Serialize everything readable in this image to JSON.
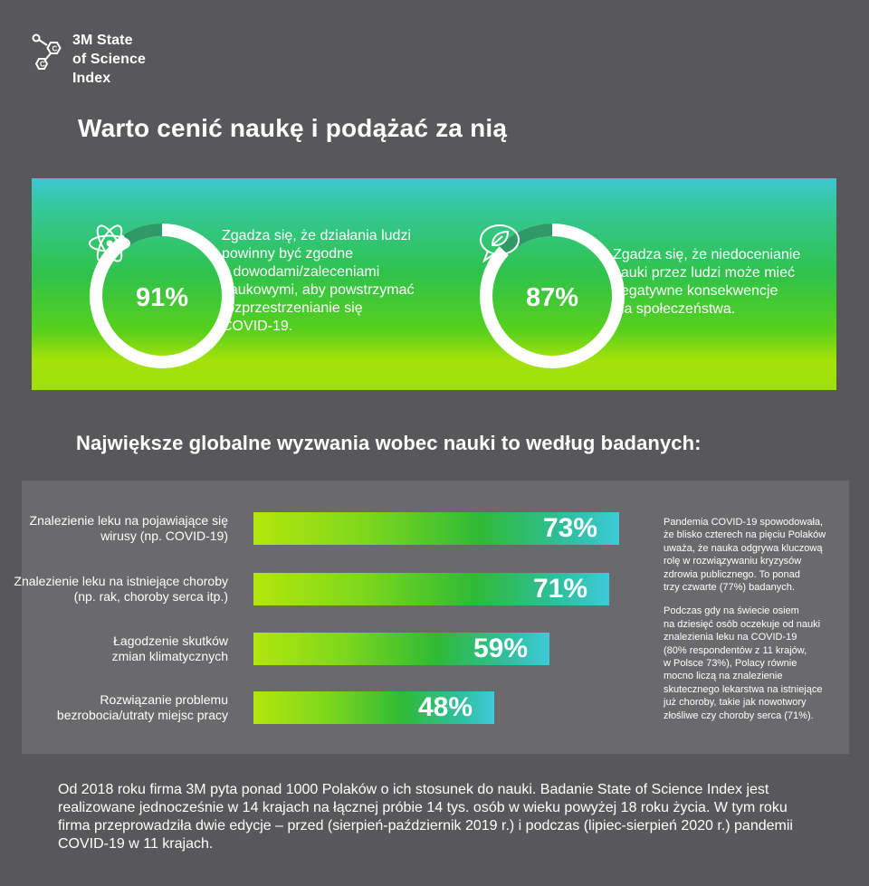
{
  "header": {
    "logo_lines": [
      "3M State",
      "of Science",
      "Index"
    ],
    "title": "Warto cenić naukę i podążać za nią"
  },
  "stats": [
    {
      "percent_label": "91%",
      "value": 91,
      "icon": "atom-icon",
      "text_lines": [
        "Zgadza się, że działania ludzi",
        "powinny być zgodne",
        "z dowodami/zaleceniami",
        "naukowymi, aby powstrzymać",
        "rozprzestrzenianie się",
        "COVID-19."
      ]
    },
    {
      "percent_label": "87%",
      "value": 87,
      "icon": "leaf-speech-bubble-icon",
      "text_lines": [
        "Zgadza się, że niedocenianie",
        "nauki przez ludzi może mieć",
        "negatywne konsekwencje",
        "dla społeczeństwa."
      ]
    }
  ],
  "section_title": "Największe globalne wyzwania wobec nauki to według badanych:",
  "chart_data": {
    "type": "bar",
    "orientation": "horizontal",
    "title": "Największe globalne wyzwania wobec nauki to według badanych:",
    "categories": [
      "Znalezienie leku na pojawiające się wirusy (np. COVID-19)",
      "Znalezienie leku na istniejące choroby (np. rak, choroby serca itp.)",
      "Łagodzenie skutków zmian klimatycznych",
      "Rozwiązanie problemu bezrobocia/utraty miejsc pracy"
    ],
    "category_lines": [
      [
        "Znalezienie leku na pojawiające się",
        "wirusy (np. COVID-19)"
      ],
      [
        "Znalezienie leku na istniejące choroby",
        "(np. rak, choroby serca itp.)"
      ],
      [
        "Łagodzenie skutków",
        "zmian klimatycznych"
      ],
      [
        "Rozwiązanie problemu",
        "bezrobocia/utraty miejsc pracy"
      ]
    ],
    "values": [
      73,
      71,
      59,
      48
    ],
    "value_labels": [
      "73%",
      "71%",
      "59%",
      "48%"
    ],
    "xlim": [
      0,
      100
    ],
    "xlabel": "",
    "ylabel": ""
  },
  "side_notes": [
    [
      "Pandemia COVID-19 spowodowała,",
      "że blisko czterech na pięciu Polaków",
      "uważa, że nauka odgrywa kluczową",
      "rolę w rozwiązywaniu kryzysów",
      "zdrowia publicznego. To ponad",
      "trzy czwarte (77%) badanych."
    ],
    [
      "Podczas gdy na świecie osiem",
      "na dziesięć osób oczekuje od nauki",
      "znalezienia leku na COVID-19",
      "(80% respondentów z 11 krajów,",
      "w Polsce 73%), Polacy równie",
      "mocno liczą na znalezienie",
      "skutecznego lekarstwa na istniejące",
      "już choroby, takie jak nowotwory",
      "złośliwe czy choroby serca (71%)."
    ]
  ],
  "footer_lines": [
    "Od 2018 roku firma 3M pyta ponad 1000 Polaków o ich stosunek do nauki. Badanie State of Science Index jest",
    "realizowane jednocześnie w 14 krajach na łącznej próbie 14 tys. osób w wieku powyżej 18 roku życia. W tym roku",
    "firma przeprowadziła dwie edycje – przed (sierpień-październik 2019 r.) i podczas (lipiec-sierpień 2020 r.) pandemii",
    "COVID-19 w 11 krajach."
  ],
  "colors": {
    "background": "#58585a",
    "chart_panel": "#6a6a6c",
    "ring_track": "#ffffff",
    "ring_gap": "#2f9a66",
    "bar_start": "#b3e60c",
    "bar_end": "#3ccbd8"
  }
}
